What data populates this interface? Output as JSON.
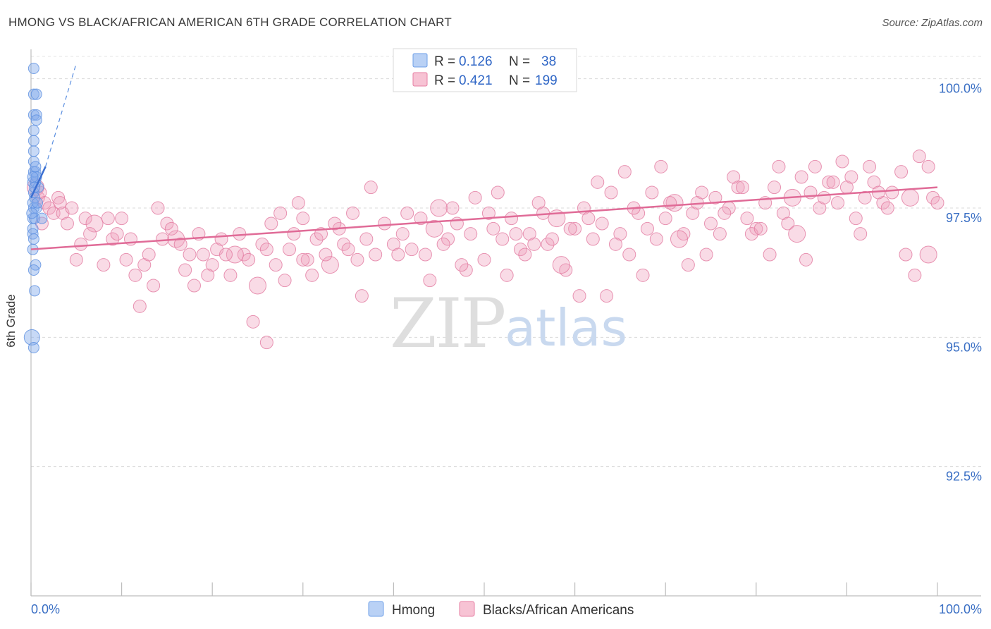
{
  "title": "HMONG VS BLACK/AFRICAN AMERICAN 6TH GRADE CORRELATION CHART",
  "source": "Source: ZipAtlas.com",
  "chart_data": {
    "type": "scatter",
    "ylabel": "6th Grade",
    "xlabel": "",
    "xlim": [
      0,
      100
    ],
    "ylim": [
      90.0,
      100.5
    ],
    "y_ticks": [
      {
        "value": 100.0,
        "label": "100.0%"
      },
      {
        "value": 97.5,
        "label": "97.5%"
      },
      {
        "value": 95.0,
        "label": "95.0%"
      },
      {
        "value": 92.5,
        "label": "92.5%"
      }
    ],
    "x_tick_labels": {
      "left": "0.0%",
      "right": "100.0%"
    },
    "watermark": {
      "part1": "ZIP",
      "part2": "atlas"
    },
    "legend": [
      {
        "name": "Hmong",
        "r_label": "R =",
        "r": "0.126",
        "n_label": "N =",
        "n": "38",
        "color": "#6fa0e8",
        "fill": "#b9d1f5"
      },
      {
        "name": "Blacks/African Americans",
        "r_label": "R =",
        "r": "0.421",
        "n_label": "N =",
        "n": "199",
        "color": "#e77fa3",
        "fill": "#f7c3d4"
      }
    ],
    "series": [
      {
        "name": "Hmong",
        "color": "#5b8fe0",
        "trend": {
          "x0": 0.0,
          "y0": 97.7,
          "x1": 1.6,
          "y1": 98.3,
          "dash_to_x": 5.0,
          "dash_to_y": 100.3
        },
        "points": [
          [
            0.3,
            100.2
          ],
          [
            0.3,
            99.7
          ],
          [
            0.6,
            99.7
          ],
          [
            0.3,
            99.3
          ],
          [
            0.6,
            99.3
          ],
          [
            0.6,
            99.2
          ],
          [
            0.3,
            99.0
          ],
          [
            0.3,
            98.8
          ],
          [
            0.3,
            98.6
          ],
          [
            0.3,
            98.4
          ],
          [
            0.3,
            98.2
          ],
          [
            0.5,
            98.2
          ],
          [
            0.2,
            98.0
          ],
          [
            0.5,
            98.0
          ],
          [
            0.8,
            97.9
          ],
          [
            0.3,
            97.8
          ],
          [
            0.4,
            97.7
          ],
          [
            0.3,
            97.5
          ],
          [
            0.6,
            97.5
          ],
          [
            0.2,
            97.3
          ],
          [
            0.4,
            97.3
          ],
          [
            1.2,
            97.3
          ],
          [
            0.2,
            97.1
          ],
          [
            0.2,
            96.7
          ],
          [
            0.5,
            96.4
          ],
          [
            0.3,
            96.3
          ],
          [
            0.4,
            95.9
          ],
          [
            0.1,
            95.0
          ],
          [
            0.3,
            94.8
          ],
          [
            0.6,
            98.1
          ],
          [
            0.2,
            97.6
          ],
          [
            0.7,
            97.6
          ],
          [
            0.2,
            98.1
          ],
          [
            0.4,
            97.9
          ],
          [
            0.1,
            97.4
          ],
          [
            0.2,
            97.0
          ],
          [
            0.5,
            98.3
          ],
          [
            0.3,
            96.9
          ]
        ]
      },
      {
        "name": "Blacks/African Americans",
        "color": "#e27aa0",
        "trend": {
          "x0": 0.0,
          "y0": 96.7,
          "x1": 100.0,
          "y1": 97.9
        },
        "points": [
          [
            0.5,
            97.9
          ],
          [
            0.8,
            97.7
          ],
          [
            1.0,
            97.8
          ],
          [
            1.5,
            97.6
          ],
          [
            2.0,
            97.5
          ],
          [
            2.5,
            97.4
          ],
          [
            3.0,
            97.7
          ],
          [
            3.5,
            97.4
          ],
          [
            4.0,
            97.2
          ],
          [
            4.5,
            97.5
          ],
          [
            5.0,
            96.5
          ],
          [
            5.5,
            96.8
          ],
          [
            6.0,
            97.3
          ],
          [
            7.0,
            97.2
          ],
          [
            8.0,
            96.4
          ],
          [
            9.0,
            96.9
          ],
          [
            9.5,
            97.0
          ],
          [
            10.0,
            97.3
          ],
          [
            10.5,
            96.5
          ],
          [
            11.0,
            96.9
          ],
          [
            11.5,
            96.2
          ],
          [
            12.5,
            96.4
          ],
          [
            13.0,
            96.6
          ],
          [
            13.5,
            96.0
          ],
          [
            14.0,
            97.5
          ],
          [
            15.0,
            97.2
          ],
          [
            16.0,
            96.9
          ],
          [
            16.5,
            96.8
          ],
          [
            17.0,
            96.3
          ],
          [
            18.0,
            96.0
          ],
          [
            18.5,
            97.0
          ],
          [
            19.0,
            96.6
          ],
          [
            20.0,
            96.4
          ],
          [
            20.5,
            96.7
          ],
          [
            21.0,
            96.9
          ],
          [
            22.0,
            96.2
          ],
          [
            23.0,
            97.0
          ],
          [
            23.5,
            96.6
          ],
          [
            24.0,
            96.5
          ],
          [
            25.0,
            96.0
          ],
          [
            25.5,
            96.8
          ],
          [
            26.0,
            96.7
          ],
          [
            26.5,
            97.2
          ],
          [
            27.0,
            96.4
          ],
          [
            28.0,
            96.1
          ],
          [
            28.5,
            96.7
          ],
          [
            29.0,
            97.0
          ],
          [
            30.0,
            97.3
          ],
          [
            30.5,
            96.5
          ],
          [
            31.0,
            96.2
          ],
          [
            31.5,
            96.9
          ],
          [
            32.0,
            97.0
          ],
          [
            33.0,
            96.4
          ],
          [
            34.0,
            97.1
          ],
          [
            34.5,
            96.8
          ],
          [
            35.0,
            96.7
          ],
          [
            36.0,
            96.5
          ],
          [
            37.0,
            96.9
          ],
          [
            38.0,
            96.6
          ],
          [
            39.0,
            97.2
          ],
          [
            40.0,
            96.8
          ],
          [
            41.0,
            97.0
          ],
          [
            42.0,
            96.7
          ],
          [
            43.0,
            97.3
          ],
          [
            44.0,
            96.1
          ],
          [
            45.0,
            97.5
          ],
          [
            46.0,
            96.9
          ],
          [
            47.0,
            97.2
          ],
          [
            48.0,
            96.3
          ],
          [
            49.0,
            97.7
          ],
          [
            50.0,
            96.5
          ],
          [
            51.0,
            97.1
          ],
          [
            52.0,
            96.9
          ],
          [
            53.0,
            97.3
          ],
          [
            54.0,
            96.7
          ],
          [
            55.0,
            97.0
          ],
          [
            56.0,
            97.6
          ],
          [
            57.0,
            96.8
          ],
          [
            58.0,
            97.3
          ],
          [
            59.0,
            96.3
          ],
          [
            60.0,
            97.1
          ],
          [
            61.0,
            97.5
          ],
          [
            62.0,
            96.9
          ],
          [
            63.0,
            97.2
          ],
          [
            64.0,
            97.8
          ],
          [
            65.0,
            97.0
          ],
          [
            66.0,
            96.6
          ],
          [
            67.0,
            97.4
          ],
          [
            68.0,
            97.1
          ],
          [
            69.0,
            96.9
          ],
          [
            70.0,
            97.3
          ],
          [
            71.0,
            97.6
          ],
          [
            72.0,
            97.0
          ],
          [
            73.0,
            97.4
          ],
          [
            74.0,
            97.8
          ],
          [
            75.0,
            97.2
          ],
          [
            76.0,
            97.0
          ],
          [
            77.0,
            97.5
          ],
          [
            78.0,
            97.9
          ],
          [
            79.0,
            97.3
          ],
          [
            80.0,
            97.1
          ],
          [
            81.0,
            97.6
          ],
          [
            82.0,
            97.9
          ],
          [
            83.0,
            97.4
          ],
          [
            84.0,
            97.7
          ],
          [
            85.0,
            98.1
          ],
          [
            86.0,
            97.8
          ],
          [
            87.0,
            97.5
          ],
          [
            88.0,
            98.0
          ],
          [
            89.0,
            97.6
          ],
          [
            90.0,
            97.9
          ],
          [
            91.0,
            97.3
          ],
          [
            92.0,
            97.7
          ],
          [
            93.0,
            98.0
          ],
          [
            94.0,
            97.6
          ],
          [
            95.0,
            97.8
          ],
          [
            96.0,
            98.2
          ],
          [
            97.0,
            97.7
          ],
          [
            98.0,
            98.5
          ],
          [
            99.0,
            98.3
          ],
          [
            99.5,
            97.7
          ],
          [
            100.0,
            97.6
          ],
          [
            1.2,
            97.2
          ],
          [
            3.2,
            97.6
          ],
          [
            6.5,
            97.0
          ],
          [
            8.5,
            97.3
          ],
          [
            12.0,
            95.6
          ],
          [
            14.5,
            96.9
          ],
          [
            17.5,
            96.6
          ],
          [
            19.5,
            96.2
          ],
          [
            22.5,
            96.6
          ],
          [
            24.5,
            95.3
          ],
          [
            26.0,
            94.9
          ],
          [
            27.5,
            97.4
          ],
          [
            29.5,
            97.6
          ],
          [
            32.5,
            96.6
          ],
          [
            33.5,
            97.2
          ],
          [
            35.5,
            97.4
          ],
          [
            36.5,
            95.8
          ],
          [
            37.5,
            97.9
          ],
          [
            40.5,
            96.6
          ],
          [
            41.5,
            97.4
          ],
          [
            43.5,
            96.6
          ],
          [
            44.5,
            97.1
          ],
          [
            45.5,
            96.8
          ],
          [
            46.5,
            97.5
          ],
          [
            47.5,
            96.4
          ],
          [
            48.5,
            97.0
          ],
          [
            50.5,
            97.4
          ],
          [
            51.5,
            97.8
          ],
          [
            52.5,
            96.2
          ],
          [
            53.5,
            97.0
          ],
          [
            54.5,
            96.6
          ],
          [
            55.5,
            96.8
          ],
          [
            56.5,
            97.4
          ],
          [
            57.5,
            96.9
          ],
          [
            58.5,
            96.4
          ],
          [
            59.5,
            97.1
          ],
          [
            60.5,
            95.8
          ],
          [
            61.5,
            97.3
          ],
          [
            62.5,
            98.0
          ],
          [
            63.5,
            95.8
          ],
          [
            64.5,
            96.8
          ],
          [
            65.5,
            98.2
          ],
          [
            66.5,
            97.5
          ],
          [
            67.5,
            96.2
          ],
          [
            68.5,
            97.8
          ],
          [
            69.5,
            98.3
          ],
          [
            70.5,
            97.6
          ],
          [
            71.5,
            96.9
          ],
          [
            72.5,
            96.4
          ],
          [
            73.5,
            97.6
          ],
          [
            74.5,
            96.6
          ],
          [
            75.5,
            97.7
          ],
          [
            76.5,
            97.4
          ],
          [
            77.5,
            98.1
          ],
          [
            78.5,
            97.9
          ],
          [
            79.5,
            97.0
          ],
          [
            80.5,
            97.1
          ],
          [
            81.5,
            96.6
          ],
          [
            82.5,
            98.3
          ],
          [
            83.5,
            97.2
          ],
          [
            84.5,
            97.0
          ],
          [
            85.5,
            96.5
          ],
          [
            86.5,
            98.3
          ],
          [
            87.5,
            97.7
          ],
          [
            88.5,
            98.0
          ],
          [
            89.5,
            98.4
          ],
          [
            90.5,
            98.1
          ],
          [
            91.5,
            97.0
          ],
          [
            92.5,
            98.3
          ],
          [
            93.5,
            97.8
          ],
          [
            94.5,
            97.5
          ],
          [
            96.5,
            96.6
          ],
          [
            97.5,
            96.2
          ],
          [
            99.0,
            96.6
          ],
          [
            15.5,
            97.1
          ],
          [
            21.5,
            96.6
          ],
          [
            30.0,
            96.5
          ]
        ]
      }
    ]
  }
}
